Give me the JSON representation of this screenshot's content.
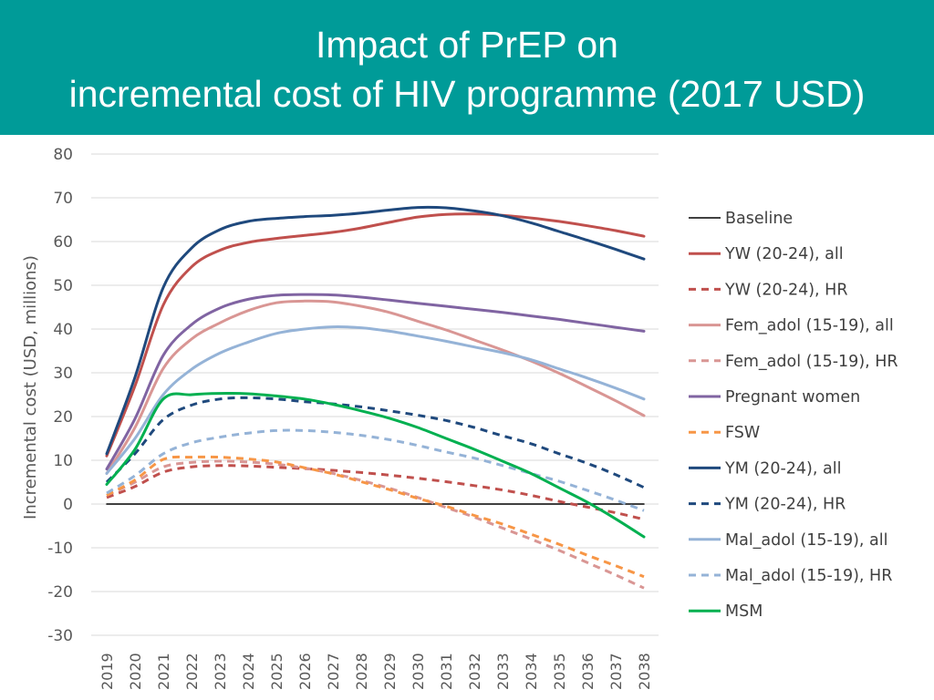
{
  "slide": {
    "title_line_1": "Impact of PrEP on",
    "title_line_2": "incremental cost of HIV programme (2017 USD)",
    "colors": {
      "band": "#009b98",
      "title_text": "#ffffff"
    }
  },
  "chart_data": {
    "type": "line",
    "title": "Impact of PrEP on incremental cost of HIV programme (2017 USD)",
    "xlabel": "",
    "ylabel": "Incremental cost (USD, millions)",
    "ylim": [
      -30,
      80
    ],
    "yticks": [
      -30,
      -20,
      -10,
      0,
      10,
      20,
      30,
      40,
      50,
      60,
      70,
      80
    ],
    "grid": true,
    "legend_position": "right",
    "x": [
      2019,
      2020,
      2021,
      2022,
      2023,
      2024,
      2025,
      2026,
      2027,
      2028,
      2029,
      2030,
      2031,
      2032,
      2033,
      2034,
      2035,
      2036,
      2037,
      2038
    ],
    "x_labels": [
      "2019",
      "2020",
      "2021",
      "2022",
      "2023",
      "2024",
      "2025",
      "2026",
      "2027",
      "2028",
      "2029",
      "2030",
      "2031",
      "2032",
      "2033",
      "2034",
      "2035",
      "2036",
      "2037",
      "2038"
    ],
    "series": [
      {
        "name": "Baseline",
        "color": "#000000",
        "dash": "solid",
        "width": 1.5,
        "values": [
          0,
          0,
          0,
          0,
          0,
          0,
          0,
          0,
          0,
          0,
          0,
          0,
          0,
          0,
          0,
          0,
          0,
          0,
          0,
          0
        ]
      },
      {
        "name": "YW (20-24), all",
        "color": "#c0504d",
        "dash": "solid",
        "width": 3,
        "values": [
          11,
          27,
          45.5,
          54.2,
          58,
          59.8,
          60.7,
          61.4,
          62.1,
          63.1,
          64.4,
          65.6,
          66.2,
          66.3,
          66,
          65.4,
          64.6,
          63.6,
          62.5,
          61.2
        ]
      },
      {
        "name": "YW (20-24), HR",
        "color": "#c0504d",
        "dash": "dashed",
        "width": 3,
        "values": [
          1.5,
          4,
          7.3,
          8.5,
          8.8,
          8.7,
          8.4,
          8.1,
          7.7,
          7.2,
          6.6,
          5.9,
          5.1,
          4.2,
          3.2,
          2,
          0.6,
          -0.7,
          -2,
          -3.5
        ]
      },
      {
        "name": "Fem_adol (15-19), all",
        "color": "#d99694",
        "dash": "solid",
        "width": 3,
        "values": [
          7,
          17.5,
          31,
          37.7,
          41.4,
          44.2,
          46,
          46.4,
          46.2,
          45.2,
          43.8,
          41.8,
          39.8,
          37.5,
          35.2,
          32.7,
          29.9,
          26.8,
          23.6,
          20.2
        ]
      },
      {
        "name": "Fem_adol (15-19), HR",
        "color": "#d99694",
        "dash": "dashed",
        "width": 3,
        "values": [
          2,
          5,
          8.5,
          9.5,
          9.8,
          9.6,
          9.1,
          8.2,
          7,
          5.4,
          3.6,
          1.5,
          -0.8,
          -3,
          -5.5,
          -8,
          -10.6,
          -13.4,
          -16.2,
          -19.2
        ]
      },
      {
        "name": "Pregnant women",
        "color": "#8064a2",
        "dash": "solid",
        "width": 3,
        "values": [
          8,
          19.5,
          34,
          41,
          44.8,
          46.8,
          47.7,
          47.9,
          47.8,
          47.3,
          46.6,
          45.9,
          45.2,
          44.5,
          43.8,
          43,
          42.2,
          41.3,
          40.4,
          39.5
        ]
      },
      {
        "name": "FSW",
        "color": "#f79646",
        "dash": "dashed",
        "width": 3,
        "values": [
          2,
          5.5,
          10.2,
          10.7,
          10.7,
          10.3,
          9.6,
          8.3,
          6.9,
          5.1,
          3.3,
          1.3,
          -0.5,
          -2.6,
          -4.6,
          -6.9,
          -9.2,
          -11.7,
          -14.1,
          -16.6
        ]
      },
      {
        "name": "YM (20-24), all",
        "color": "#1f497d",
        "dash": "solid",
        "width": 3,
        "values": [
          11.5,
          29,
          49.5,
          58.5,
          62.7,
          64.6,
          65.3,
          65.7,
          66,
          66.5,
          67.2,
          67.8,
          67.7,
          67,
          65.9,
          64.3,
          62.3,
          60.3,
          58.2,
          56
        ]
      },
      {
        "name": "YM (20-24), HR",
        "color": "#1f497d",
        "dash": "dashed",
        "width": 3,
        "values": [
          5,
          11.5,
          19.3,
          22.6,
          24,
          24.3,
          24,
          23.4,
          22.9,
          22.2,
          21.3,
          20.3,
          19.1,
          17.5,
          15.6,
          13.8,
          11.5,
          9.3,
          6.7,
          3.8
        ]
      },
      {
        "name": "Mal_adol (15-19), all",
        "color": "#95b3d7",
        "dash": "solid",
        "width": 3,
        "values": [
          7,
          15,
          25,
          30.8,
          34.5,
          37,
          39,
          40,
          40.5,
          40.3,
          39.5,
          38.4,
          37.2,
          35.9,
          34.6,
          33,
          30.9,
          28.8,
          26.5,
          24
        ]
      },
      {
        "name": "Mal_adol (15-19), HR",
        "color": "#95b3d7",
        "dash": "dashed",
        "width": 3,
        "values": [
          2.5,
          6.5,
          11.5,
          14,
          15.3,
          16.2,
          16.8,
          16.8,
          16.4,
          15.7,
          14.7,
          13.4,
          11.9,
          10.5,
          8.8,
          7,
          5.2,
          3.1,
          0.9,
          -1.5
        ]
      },
      {
        "name": "MSM",
        "color": "#00b050",
        "dash": "solid",
        "width": 3,
        "values": [
          4.5,
          12.5,
          24,
          25,
          25.3,
          25.2,
          24.7,
          24,
          22.8,
          21.3,
          19.6,
          17.5,
          15,
          12.5,
          9.8,
          7,
          3.7,
          0.4,
          -3.4,
          -7.5
        ]
      }
    ]
  }
}
